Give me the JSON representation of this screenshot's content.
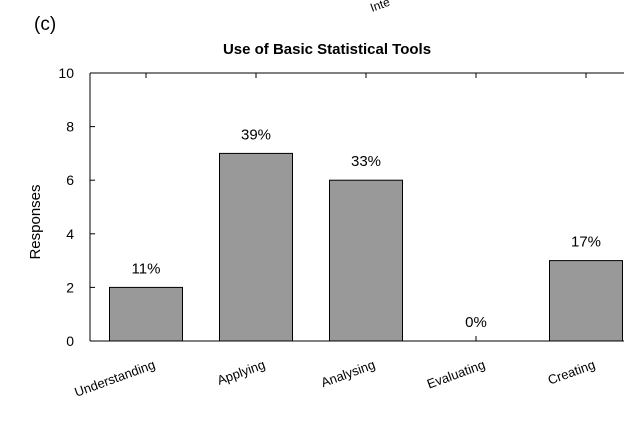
{
  "panel_label": "(c)",
  "fragment_text": "Inte",
  "chart_data": {
    "type": "bar",
    "title": "Use of Basic Statistical Tools",
    "xlabel": "",
    "ylabel": "Responses",
    "ylim": [
      0,
      10
    ],
    "yticks": [
      0,
      2,
      4,
      6,
      8,
      10
    ],
    "categories": [
      "Understanding",
      "Applying",
      "Analysing",
      "Evaluating",
      "Creating"
    ],
    "values": [
      2,
      7,
      6,
      0,
      3
    ],
    "data_labels": [
      "11%",
      "39%",
      "33%",
      "0%",
      "17%"
    ],
    "bar_color": "#999999",
    "grid": false,
    "legend": "none"
  }
}
